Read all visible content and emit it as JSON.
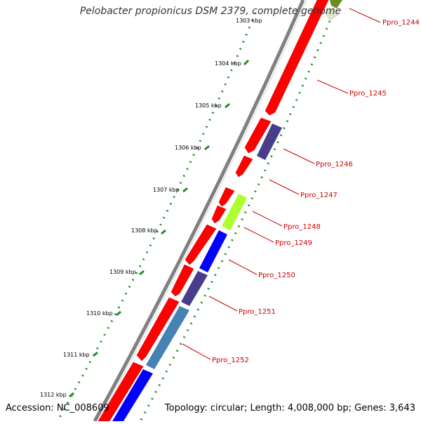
{
  "title": "Pelobacter propionicus DSM 2379, complete genome",
  "footer": {
    "accession": "Accession: NC_008609",
    "summary": "Topology: circular; Length: 4,008,000 bp; Genes: 3,643"
  },
  "colors": {
    "backbone": "#808080",
    "tick_dots": "#228b22",
    "forward_gene": "#ff0000",
    "label_red": "#cc0000",
    "purple_gene": "#483d8b",
    "lime_gene": "#adff2f",
    "blue_gene": "#0000ff",
    "steelblue_gene": "#4682b4",
    "olive_gene": "#6b8e23"
  },
  "ticks": [
    "1303 kbp",
    "1304 kbp",
    "1305 kbp",
    "1306 kbp",
    "1307 kbp",
    "1308 kbp",
    "1309 kbp",
    "1310 kbp",
    "1311 kbp",
    "1312 kbp"
  ],
  "gene_labels": [
    "Ppro_1244",
    "Ppro_1245",
    "Ppro_1246",
    "Ppro_1247",
    "Ppro_1248",
    "Ppro_1249",
    "Ppro_1250",
    "Ppro_1251",
    "Ppro_1252"
  ]
}
